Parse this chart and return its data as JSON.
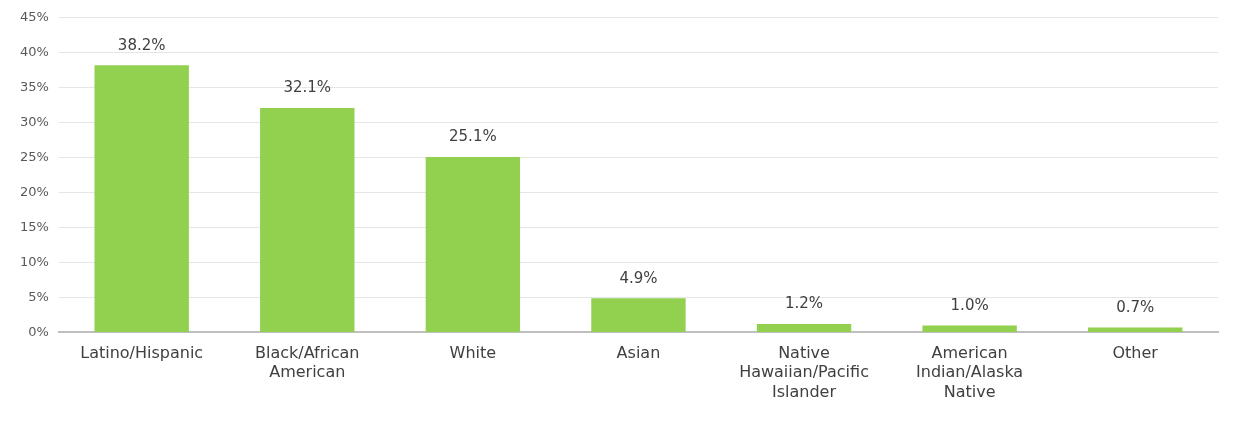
{
  "chart_data": {
    "type": "bar",
    "categories": [
      "Latino/Hispanic",
      "Black/African American",
      "White",
      "Asian",
      "Native Hawaiian/Pacific Islander",
      "American Indian/Alaska Native",
      "Other"
    ],
    "values": [
      38.2,
      32.1,
      25.1,
      4.9,
      1.2,
      1.0,
      0.7
    ],
    "value_labels": [
      "38.2%",
      "32.1%",
      "25.1%",
      "4.9%",
      "1.2%",
      "1.0%",
      "0.7%"
    ],
    "color": "#92d050",
    "ylim": [
      0,
      45
    ],
    "yticks": [
      {
        "value": 0,
        "label": "0%"
      },
      {
        "value": 5,
        "label": "5%"
      },
      {
        "value": 10,
        "label": "10%"
      },
      {
        "value": 15,
        "label": "15%"
      },
      {
        "value": 20,
        "label": "20%"
      },
      {
        "value": 25,
        "label": "25%"
      },
      {
        "value": 30,
        "label": "30%"
      },
      {
        "value": 35,
        "label": "35%"
      },
      {
        "value": 40,
        "label": "40%"
      },
      {
        "value": 45,
        "label": "45%"
      }
    ],
    "grid": "y"
  }
}
